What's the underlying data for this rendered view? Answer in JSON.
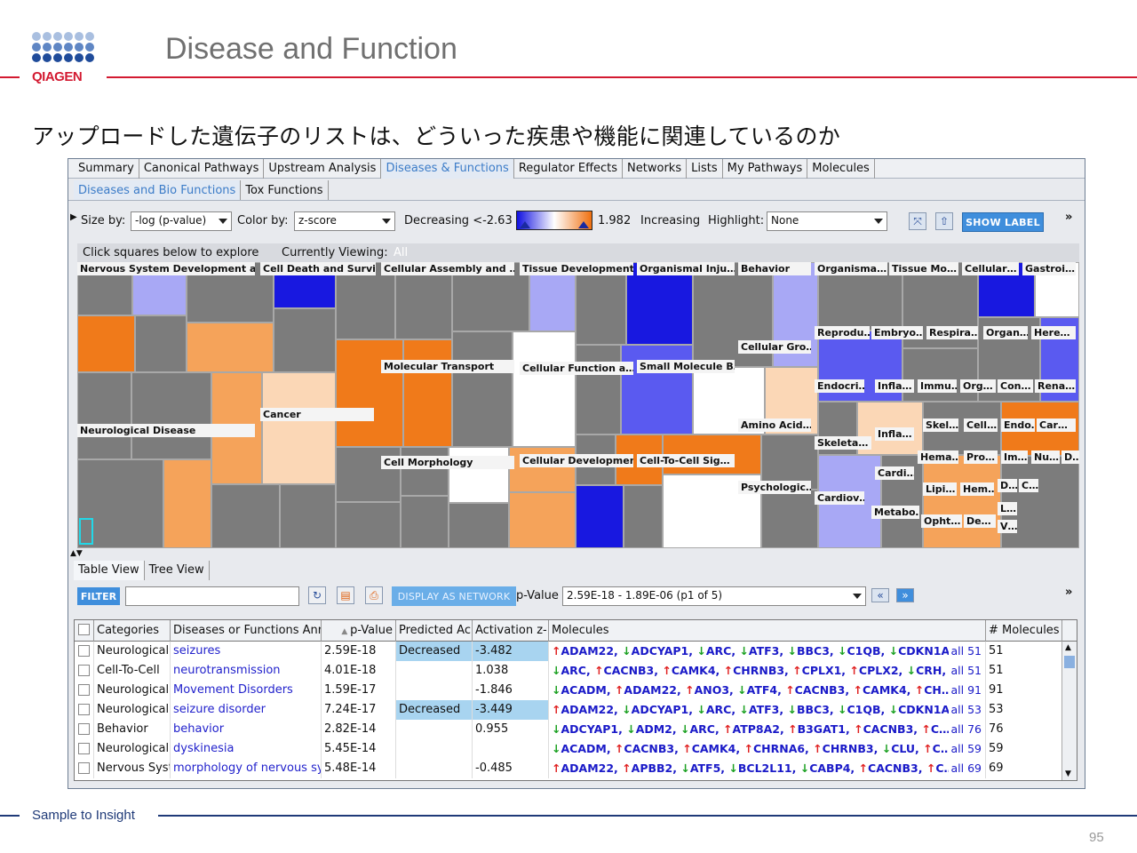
{
  "brand": {
    "logo_text": "QIAGEN",
    "logo_color": "#d31a31",
    "dot_color": "#1f4b9a"
  },
  "slide": {
    "title": "Disease and Function",
    "subtitle": "アップロードした遺伝子のリストは、どういった疾患や機能に関連しているのか",
    "footer": "Sample to Insight",
    "page_number": "95"
  },
  "tabs": [
    "Summary",
    "Canonical Pathways",
    "Upstream Analysis",
    "Diseases & Functions",
    "Regulator Effects",
    "Networks",
    "Lists",
    "My Pathways",
    "Molecules"
  ],
  "active_tab": "Diseases & Functions",
  "sub_tabs": [
    "Diseases and Bio Functions",
    "Tox Functions"
  ],
  "toolbar": {
    "size_by_label": "Size by:",
    "size_by_value": "-log (p-value)",
    "color_by_label": "Color by:",
    "color_by_value": "z-score",
    "decreasing_label": "Decreasing <-2.63",
    "max_value": "1.982",
    "increasing_label": "Increasing",
    "highlight_label": "Highlight:",
    "highlight_value": "None",
    "show_label_button": "SHOW LABEL",
    "more": "»"
  },
  "explore": {
    "hint": "Click squares below to explore",
    "viewing_label": "Currently Viewing:",
    "viewing_value": "All"
  },
  "treemap_labels": [
    "Nervous System Development a…",
    "Cell Death and Survi…",
    "Cellular Assembly and …",
    "Tissue Development",
    "Organismal Inju…",
    "Behavior",
    "Organisma…",
    "Tissue Mo…",
    "Cellular…",
    "Gastroi…",
    "Cancer",
    "Neurological Disease",
    "Molecular Transport",
    "Cellular Function a…",
    "Small Molecule B…",
    "Cellular Gro…",
    "Reprodu…",
    "Embryo…",
    "Respira…",
    "Organ…",
    "Here…",
    "Endocri…",
    "Infla…",
    "Immu…",
    "Org…",
    "Con…",
    "Rena…",
    "Amino Acid…",
    "Skel…",
    "Cell…",
    "Endo…",
    "Car…",
    "Skeleta…",
    "Infla…",
    "Cell Morphology",
    "Cellular Development",
    "Cell-To-Cell Sig…",
    "Hema…",
    "Pro…",
    "Im…",
    "Nu…",
    "D…",
    "Cardi…",
    "Psychologic…",
    "Lipi…",
    "Hem…",
    "D…",
    "C…",
    "Cardiov…",
    "L…",
    "Metabo…",
    "Opht…",
    "De…",
    "V…"
  ],
  "lower_tabs": [
    "Table View",
    "Tree View"
  ],
  "lower_toolbar": {
    "filter_button": "FILTER",
    "display_button": "DISPLAY AS NETWORK",
    "pvalue_label": "p-Value",
    "pvalue_range": "2.59E-18 - 1.89E-06   (p1 of 5)",
    "prev": "«",
    "next": "»",
    "more": "»"
  },
  "table": {
    "headers": [
      "Categories",
      "Diseases or Functions Ann",
      "p-Value",
      "Predicted Ac",
      "Activation z-",
      "Molecules",
      "# Molecules"
    ],
    "rows": [
      {
        "category": "Neurological",
        "function": "seizures",
        "pvalue": "2.59E-18",
        "predicted": "Decreased",
        "zscore": "-3.482",
        "molecules": "↑ADAM22, ↓ADCYAP1, ↓ARC, ↓ATF3, ↓BBC3, ↓C1QB, ↓CDKN1A",
        "all": "all 51",
        "count": "51"
      },
      {
        "category": "Cell-To-Cell",
        "function": "neurotransmission",
        "pvalue": "4.01E-18",
        "predicted": "",
        "zscore": "1.038",
        "molecules": "↓ARC, ↑CACNB3, ↑CAMK4, ↑CHRNB3, ↑CPLX1, ↑CPLX2, ↓CRH, ↑…",
        "all": "all 51",
        "count": "51"
      },
      {
        "category": "Neurological",
        "function": "Movement Disorders",
        "pvalue": "1.59E-17",
        "predicted": "",
        "zscore": "-1.846",
        "molecules": "↓ACADM, ↑ADAM22, ↑ANO3, ↓ATF4, ↑CACNB3, ↑CAMK4, ↑CH…",
        "all": "all 91",
        "count": "91"
      },
      {
        "category": "Neurological",
        "function": "seizure disorder",
        "pvalue": "7.24E-17",
        "predicted": "Decreased",
        "zscore": "-3.449",
        "molecules": "↑ADAM22, ↓ADCYAP1, ↓ARC, ↓ATF3, ↓BBC3, ↓C1QB, ↓CDKN1A",
        "all": "all 53",
        "count": "53"
      },
      {
        "category": "Behavior",
        "function": "behavior",
        "pvalue": "2.82E-14",
        "predicted": "",
        "zscore": "0.955",
        "molecules": "↓ADCYAP1, ↓ADM2, ↓ARC, ↑ATP8A2, ↑B3GAT1, ↑CACNB3, ↑C…",
        "all": "all 76",
        "count": "76"
      },
      {
        "category": "Neurological",
        "function": "dyskinesia",
        "pvalue": "5.45E-14",
        "predicted": "",
        "zscore": "",
        "molecules": "↓ACADM, ↑CACNB3, ↑CAMK4, ↑CHRNA6, ↑CHRNB3, ↓CLU, ↑C…",
        "all": "all 59",
        "count": "59"
      },
      {
        "category": "Nervous Syst",
        "function": "morphology of nervous sy",
        "pvalue": "5.48E-14",
        "predicted": "",
        "zscore": "-0.485",
        "molecules": "↑ADAM22, ↑APBB2, ↓ATF5, ↓BCL2L11, ↓CABP4, ↑CACNB3, ↑C…",
        "all": "all 69",
        "count": "69"
      }
    ]
  },
  "colors": {
    "increase": "#f07a1a",
    "decrease": "#1818e0",
    "neutral": "#7c7c7c",
    "accent": "#3f8edc"
  }
}
